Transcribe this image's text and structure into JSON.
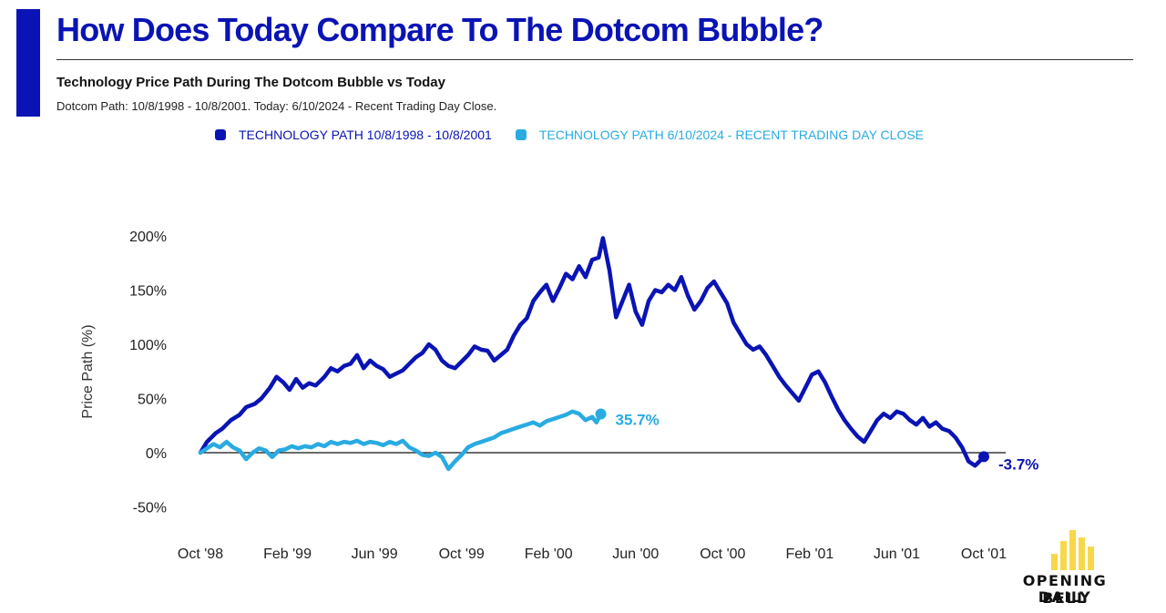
{
  "header": {
    "title": "How Does Today Compare To The Dotcom Bubble?",
    "subtitle": "Technology Price Path During The Dotcom Bubble vs Today",
    "note": "Dotcom Path: 10/8/1998 - 10/8/2001. Today: 6/10/2024 - Recent Trading Day Close."
  },
  "colors": {
    "accent": "#0a14b4",
    "dotcom": "#0a14b4",
    "today": "#29abe2",
    "logo_yellow": "#f7d84a"
  },
  "logo": {
    "line1": "OPENING BELL",
    "line2": "DAILY"
  },
  "chart_data": {
    "type": "line",
    "ylabel": "Price Path (%)",
    "ylim": [
      -50,
      200
    ],
    "yticks": [
      200,
      150,
      100,
      50,
      0,
      -50
    ],
    "ytick_labels": [
      "200%",
      "150%",
      "100%",
      "50%",
      "0%",
      "-50%"
    ],
    "xlim": [
      0,
      36
    ],
    "x_unit": "months since start",
    "xtick_labels": [
      "Oct '98",
      "Feb '99",
      "Jun '99",
      "Oct '99",
      "Feb '00",
      "Jun '00",
      "Oct '00",
      "Feb '01",
      "Jun '01",
      "Oct '01"
    ],
    "xtick_positions": [
      0,
      4,
      8,
      12,
      16,
      20,
      24,
      28,
      32,
      36
    ],
    "legend_position": "top",
    "series": [
      {
        "name": "TECHNOLOGY PATH 10/8/1998 - 10/8/2001",
        "end_label": "-3.7%",
        "points": [
          [
            0,
            0
          ],
          [
            0.3,
            10
          ],
          [
            0.7,
            18
          ],
          [
            1.0,
            22
          ],
          [
            1.4,
            30
          ],
          [
            1.8,
            35
          ],
          [
            2.1,
            42
          ],
          [
            2.5,
            45
          ],
          [
            2.8,
            50
          ],
          [
            3.2,
            60
          ],
          [
            3.5,
            70
          ],
          [
            3.8,
            65
          ],
          [
            4.1,
            58
          ],
          [
            4.4,
            68
          ],
          [
            4.7,
            60
          ],
          [
            5.0,
            64
          ],
          [
            5.3,
            62
          ],
          [
            5.7,
            70
          ],
          [
            6.0,
            78
          ],
          [
            6.3,
            75
          ],
          [
            6.6,
            80
          ],
          [
            6.9,
            82
          ],
          [
            7.2,
            90
          ],
          [
            7.5,
            78
          ],
          [
            7.8,
            85
          ],
          [
            8.1,
            80
          ],
          [
            8.4,
            77
          ],
          [
            8.7,
            70
          ],
          [
            9.0,
            73
          ],
          [
            9.3,
            76
          ],
          [
            9.6,
            82
          ],
          [
            9.9,
            88
          ],
          [
            10.2,
            92
          ],
          [
            10.5,
            100
          ],
          [
            10.8,
            95
          ],
          [
            11.1,
            85
          ],
          [
            11.4,
            80
          ],
          [
            11.7,
            78
          ],
          [
            12.0,
            84
          ],
          [
            12.3,
            90
          ],
          [
            12.6,
            98
          ],
          [
            12.9,
            95
          ],
          [
            13.2,
            94
          ],
          [
            13.5,
            85
          ],
          [
            13.8,
            90
          ],
          [
            14.1,
            95
          ],
          [
            14.4,
            108
          ],
          [
            14.7,
            118
          ],
          [
            15.0,
            124
          ],
          [
            15.3,
            140
          ],
          [
            15.6,
            148
          ],
          [
            15.9,
            155
          ],
          [
            16.2,
            140
          ],
          [
            16.5,
            152
          ],
          [
            16.8,
            165
          ],
          [
            17.1,
            160
          ],
          [
            17.4,
            172
          ],
          [
            17.7,
            162
          ],
          [
            18.0,
            178
          ],
          [
            18.3,
            180
          ],
          [
            18.5,
            198
          ],
          [
            18.8,
            168
          ],
          [
            19.1,
            125
          ],
          [
            19.4,
            140
          ],
          [
            19.7,
            155
          ],
          [
            20.0,
            130
          ],
          [
            20.3,
            118
          ],
          [
            20.6,
            140
          ],
          [
            20.9,
            150
          ],
          [
            21.2,
            148
          ],
          [
            21.5,
            155
          ],
          [
            21.8,
            150
          ],
          [
            22.1,
            162
          ],
          [
            22.4,
            145
          ],
          [
            22.7,
            132
          ],
          [
            23.0,
            140
          ],
          [
            23.3,
            152
          ],
          [
            23.6,
            158
          ],
          [
            23.9,
            148
          ],
          [
            24.2,
            138
          ],
          [
            24.5,
            120
          ],
          [
            24.8,
            110
          ],
          [
            25.1,
            100
          ],
          [
            25.4,
            95
          ],
          [
            25.7,
            98
          ],
          [
            26.0,
            90
          ],
          [
            26.3,
            80
          ],
          [
            26.6,
            70
          ],
          [
            26.9,
            62
          ],
          [
            27.2,
            55
          ],
          [
            27.5,
            48
          ],
          [
            27.8,
            60
          ],
          [
            28.1,
            72
          ],
          [
            28.4,
            75
          ],
          [
            28.7,
            65
          ],
          [
            29.0,
            52
          ],
          [
            29.3,
            40
          ],
          [
            29.6,
            30
          ],
          [
            29.9,
            22
          ],
          [
            30.2,
            15
          ],
          [
            30.5,
            10
          ],
          [
            30.8,
            20
          ],
          [
            31.1,
            30
          ],
          [
            31.4,
            36
          ],
          [
            31.7,
            32
          ],
          [
            32.0,
            38
          ],
          [
            32.3,
            36
          ],
          [
            32.6,
            30
          ],
          [
            32.9,
            26
          ],
          [
            33.2,
            32
          ],
          [
            33.5,
            24
          ],
          [
            33.8,
            28
          ],
          [
            34.1,
            22
          ],
          [
            34.4,
            20
          ],
          [
            34.7,
            14
          ],
          [
            35.0,
            5
          ],
          [
            35.3,
            -8
          ],
          [
            35.6,
            -12
          ],
          [
            35.8,
            -8
          ],
          [
            36,
            -3.7
          ]
        ]
      },
      {
        "name": "TECHNOLOGY PATH 6/10/2024 - RECENT TRADING DAY CLOSE",
        "end_label": "35.7%",
        "points": [
          [
            0,
            0
          ],
          [
            0.3,
            4
          ],
          [
            0.6,
            8
          ],
          [
            0.9,
            5
          ],
          [
            1.2,
            10
          ],
          [
            1.5,
            5
          ],
          [
            1.8,
            2
          ],
          [
            2.1,
            -6
          ],
          [
            2.4,
            0
          ],
          [
            2.7,
            4
          ],
          [
            3.0,
            2
          ],
          [
            3.3,
            -4
          ],
          [
            3.6,
            2
          ],
          [
            3.9,
            3
          ],
          [
            4.2,
            6
          ],
          [
            4.5,
            4
          ],
          [
            4.8,
            6
          ],
          [
            5.1,
            5
          ],
          [
            5.4,
            8
          ],
          [
            5.7,
            6
          ],
          [
            6.0,
            10
          ],
          [
            6.3,
            8
          ],
          [
            6.6,
            10
          ],
          [
            6.9,
            9
          ],
          [
            7.2,
            11
          ],
          [
            7.5,
            8
          ],
          [
            7.8,
            10
          ],
          [
            8.1,
            9
          ],
          [
            8.4,
            7
          ],
          [
            8.7,
            10
          ],
          [
            9.0,
            8
          ],
          [
            9.3,
            11
          ],
          [
            9.6,
            5
          ],
          [
            9.9,
            2
          ],
          [
            10.2,
            -2
          ],
          [
            10.5,
            -3
          ],
          [
            10.8,
            0
          ],
          [
            11.1,
            -4
          ],
          [
            11.4,
            -15
          ],
          [
            11.7,
            -8
          ],
          [
            12.0,
            -2
          ],
          [
            12.3,
            5
          ],
          [
            12.6,
            8
          ],
          [
            12.9,
            10
          ],
          [
            13.2,
            12
          ],
          [
            13.5,
            14
          ],
          [
            13.8,
            18
          ],
          [
            14.1,
            20
          ],
          [
            14.4,
            22
          ],
          [
            14.7,
            24
          ],
          [
            15.0,
            26
          ],
          [
            15.3,
            28
          ],
          [
            15.6,
            25
          ],
          [
            15.9,
            29
          ],
          [
            16.2,
            31
          ],
          [
            16.5,
            33
          ],
          [
            16.8,
            35
          ],
          [
            17.1,
            38
          ],
          [
            17.4,
            36
          ],
          [
            17.7,
            30
          ],
          [
            18.0,
            33
          ],
          [
            18.2,
            28
          ],
          [
            18.4,
            35.7
          ]
        ]
      }
    ]
  }
}
